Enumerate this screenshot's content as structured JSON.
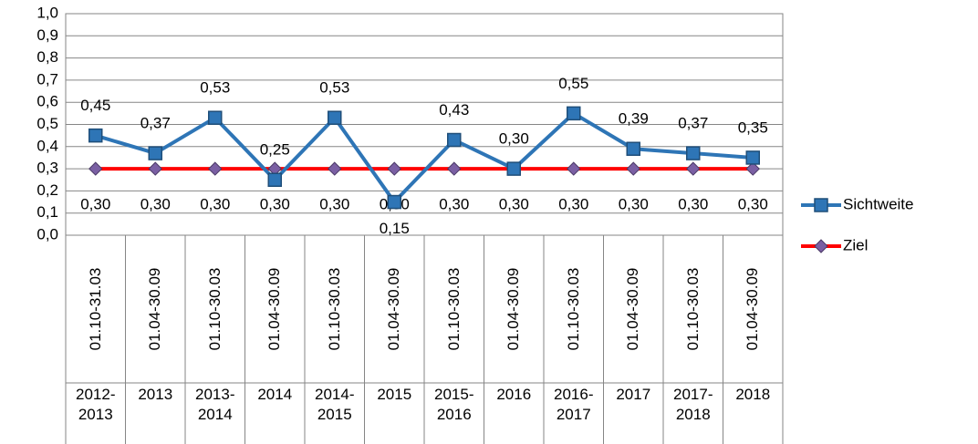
{
  "chart_data": {
    "type": "line",
    "categories": [
      "01.10-31.03",
      "01.04-30.09",
      "01.10-30.03",
      "01.04-30.09",
      "01.10-30.03",
      "01.04-30.09",
      "01.10-30.03",
      "01.04-30.09",
      "01.10-30.03",
      "01.04-30.09",
      "01.10-30.03",
      "01.04-30.09"
    ],
    "category_groups": [
      "2012-2013",
      "2013",
      "2013-2014",
      "2014",
      "2014-2015",
      "2015",
      "2015-2016",
      "2016",
      "2016-2017",
      "2017",
      "2017-2018",
      "2018"
    ],
    "series": [
      {
        "name": "Sichtweite",
        "color": "#2e75b6",
        "marker": "square",
        "values": [
          0.45,
          0.37,
          0.53,
          0.25,
          0.53,
          0.15,
          0.43,
          0.3,
          0.55,
          0.39,
          0.37,
          0.35
        ],
        "value_labels": [
          "0,45",
          "0,37",
          "0,53",
          "0,25",
          "0,53",
          "0,15",
          "0,43",
          "0,30",
          "0,55",
          "0,39",
          "0,37",
          "0,35"
        ]
      },
      {
        "name": "Ziel",
        "color": "#ff0000",
        "marker": "diamond",
        "values": [
          0.3,
          0.3,
          0.3,
          0.3,
          0.3,
          0.3,
          0.3,
          0.3,
          0.3,
          0.3,
          0.3,
          0.3
        ],
        "value_labels": [
          "0,30",
          "0,30",
          "0,30",
          "0,30",
          "0,30",
          "0,30",
          "0,30",
          "0,30",
          "0,30",
          "0,30",
          "0,30",
          "0,30"
        ]
      }
    ],
    "ylim": [
      0,
      1
    ],
    "yticks": [
      {
        "value": 0,
        "label": "0,0"
      },
      {
        "value": 0.1,
        "label": "0,1"
      },
      {
        "value": 0.2,
        "label": "0,2"
      },
      {
        "value": 0.3,
        "label": "0,3"
      },
      {
        "value": 0.4,
        "label": "0,4"
      },
      {
        "value": 0.5,
        "label": "0,5"
      },
      {
        "value": 0.6,
        "label": "0,6"
      },
      {
        "value": 0.7,
        "label": "0,7"
      },
      {
        "value": 0.8,
        "label": "0,8"
      },
      {
        "value": 0.9,
        "label": "0,9"
      },
      {
        "value": 1,
        "label": "1,0"
      }
    ],
    "grid": true,
    "legend": "right"
  }
}
